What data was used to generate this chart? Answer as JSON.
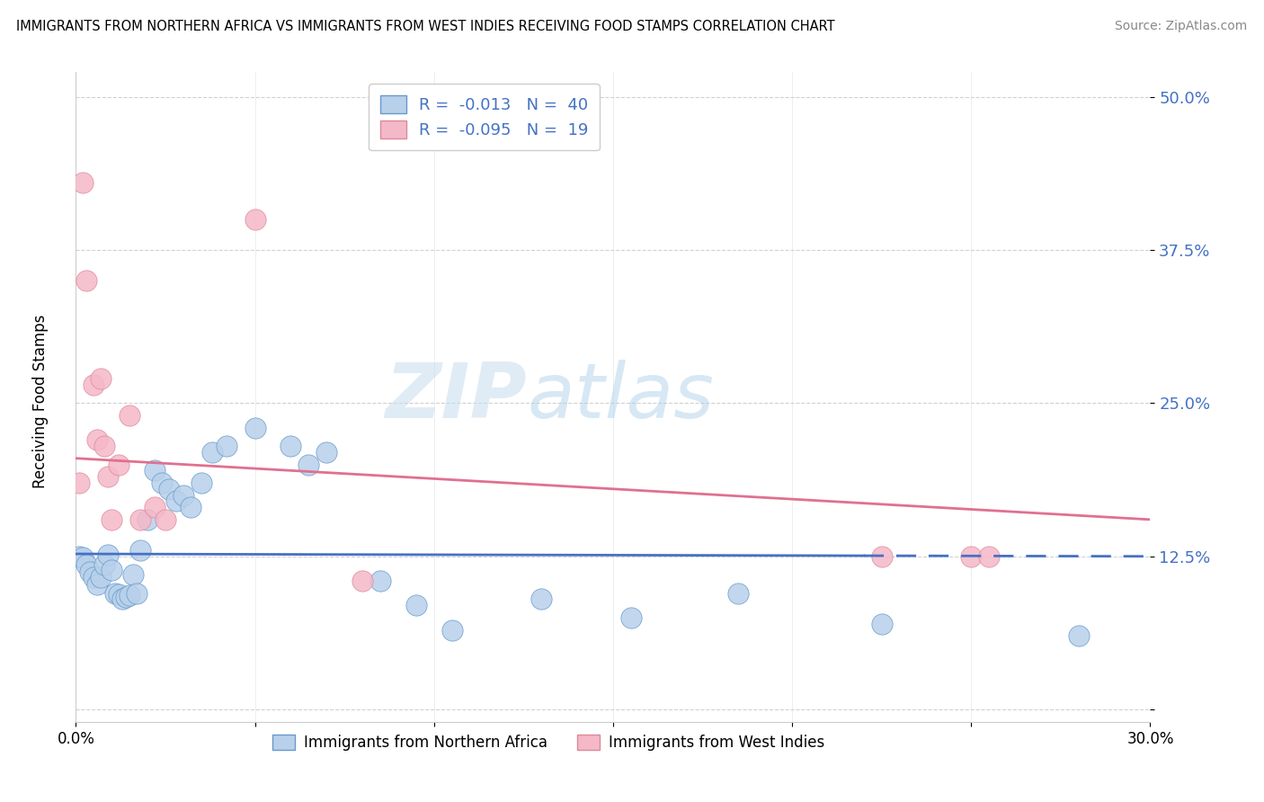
{
  "title": "IMMIGRANTS FROM NORTHERN AFRICA VS IMMIGRANTS FROM WEST INDIES RECEIVING FOOD STAMPS CORRELATION CHART",
  "source": "Source: ZipAtlas.com",
  "label_blue": "Immigrants from Northern Africa",
  "label_pink": "Immigrants from West Indies",
  "ylabel": "Receiving Food Stamps",
  "xlim": [
    0.0,
    0.3
  ],
  "ylim": [
    -0.01,
    0.52
  ],
  "yticks": [
    0.0,
    0.125,
    0.25,
    0.375,
    0.5
  ],
  "ytick_labels": [
    "",
    "12.5%",
    "25.0%",
    "37.5%",
    "50.0%"
  ],
  "xticks": [
    0.0,
    0.05,
    0.1,
    0.15,
    0.2,
    0.25,
    0.3
  ],
  "xtick_labels": [
    "0.0%",
    "",
    "",
    "",
    "",
    "",
    "30.0%"
  ],
  "legend_R_blue": "-0.013",
  "legend_N_blue": "40",
  "legend_R_pink": "-0.095",
  "legend_N_pink": "19",
  "blue_fill": "#b8d0ea",
  "pink_fill": "#f5b8c8",
  "blue_edge": "#6699cc",
  "pink_edge": "#dd8899",
  "blue_line": "#4472c4",
  "pink_line": "#e07090",
  "watermark_zip": "ZIP",
  "watermark_atlas": "atlas",
  "blue_x": [
    0.001,
    0.002,
    0.003,
    0.004,
    0.005,
    0.006,
    0.007,
    0.008,
    0.009,
    0.01,
    0.011,
    0.012,
    0.013,
    0.014,
    0.015,
    0.016,
    0.017,
    0.018,
    0.02,
    0.022,
    0.024,
    0.026,
    0.028,
    0.03,
    0.032,
    0.035,
    0.038,
    0.042,
    0.05,
    0.06,
    0.065,
    0.07,
    0.085,
    0.095,
    0.105,
    0.13,
    0.155,
    0.185,
    0.225,
    0.28
  ],
  "blue_y": [
    0.125,
    0.124,
    0.118,
    0.112,
    0.108,
    0.102,
    0.108,
    0.118,
    0.126,
    0.114,
    0.095,
    0.094,
    0.09,
    0.092,
    0.093,
    0.11,
    0.095,
    0.13,
    0.155,
    0.195,
    0.185,
    0.18,
    0.17,
    0.175,
    0.165,
    0.185,
    0.21,
    0.215,
    0.23,
    0.215,
    0.2,
    0.21,
    0.105,
    0.085,
    0.065,
    0.09,
    0.075,
    0.095,
    0.07,
    0.06
  ],
  "pink_x": [
    0.001,
    0.002,
    0.003,
    0.005,
    0.006,
    0.007,
    0.008,
    0.009,
    0.01,
    0.012,
    0.015,
    0.018,
    0.022,
    0.025,
    0.05,
    0.08,
    0.225,
    0.25,
    0.255
  ],
  "pink_y": [
    0.185,
    0.43,
    0.35,
    0.265,
    0.22,
    0.27,
    0.215,
    0.19,
    0.155,
    0.2,
    0.24,
    0.155,
    0.165,
    0.155,
    0.4,
    0.105,
    0.125,
    0.125,
    0.125
  ],
  "blue_line_solid_end": 0.22,
  "blue_line_dashed_start": 0.22
}
